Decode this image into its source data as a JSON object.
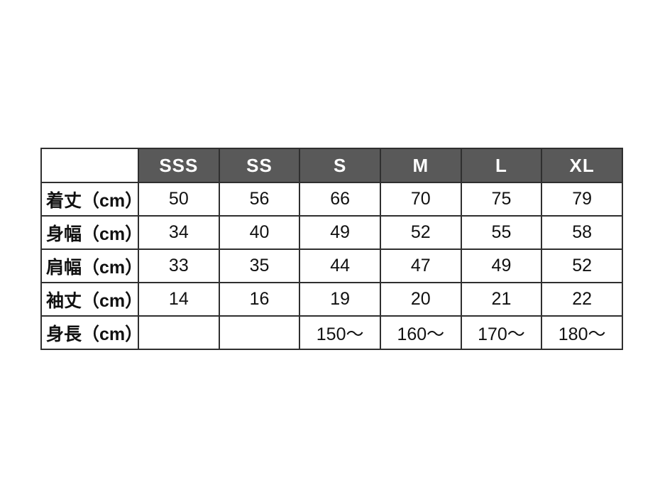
{
  "chart_data": {
    "type": "table",
    "title": "",
    "columns": [
      "",
      "SSS",
      "SS",
      "S",
      "M",
      "L",
      "XL"
    ],
    "rows": [
      [
        "着丈（cm）",
        "50",
        "56",
        "66",
        "70",
        "75",
        "79"
      ],
      [
        "身幅（cm）",
        "34",
        "40",
        "49",
        "52",
        "55",
        "58"
      ],
      [
        "肩幅（cm）",
        "33",
        "35",
        "44",
        "47",
        "49",
        "52"
      ],
      [
        "袖丈（cm）",
        "14",
        "16",
        "19",
        "20",
        "21",
        "22"
      ],
      [
        "身長（cm）",
        "",
        "",
        "150～",
        "160～",
        "170～",
        "180～"
      ]
    ]
  },
  "table": {
    "corner_label": "",
    "size_headers": [
      "SSS",
      "SS",
      "S",
      "M",
      "L",
      "XL"
    ],
    "measurement_rows": [
      {
        "label": "着丈（cm）",
        "values": [
          "50",
          "56",
          "66",
          "70",
          "75",
          "79"
        ]
      },
      {
        "label": "身幅（cm）",
        "values": [
          "34",
          "40",
          "49",
          "52",
          "55",
          "58"
        ]
      },
      {
        "label": "肩幅（cm）",
        "values": [
          "33",
          "35",
          "44",
          "47",
          "49",
          "52"
        ]
      },
      {
        "label": "袖丈（cm）",
        "values": [
          "14",
          "16",
          "19",
          "20",
          "21",
          "22"
        ]
      },
      {
        "label": "身長（cm）",
        "values": [
          "",
          "",
          "150～",
          "160～",
          "170～",
          "180～"
        ]
      }
    ]
  },
  "colors": {
    "header_bg": "#595959",
    "header_text": "#ffffff",
    "border": "#2f2f2f",
    "cell_bg": "#ffffff",
    "text": "#111111"
  }
}
